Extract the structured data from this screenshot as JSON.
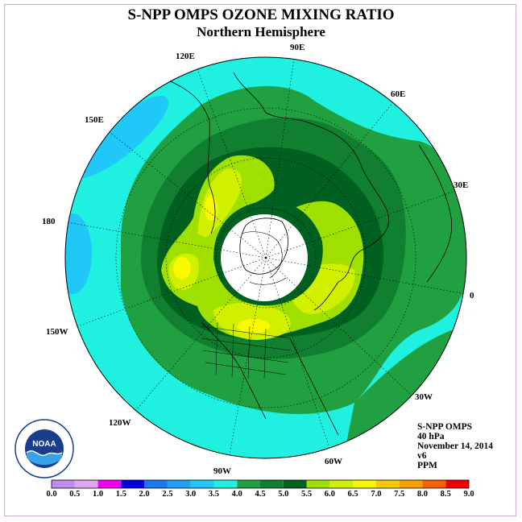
{
  "title": "S-NPP OMPS OZONE MIXING RATIO",
  "subtitle": "Northern Hemisphere",
  "longitude_labels": [
    "90E",
    "60E",
    "30E",
    "0",
    "30W",
    "60W",
    "90W",
    "120W",
    "150W",
    "180",
    "150E",
    "120E"
  ],
  "info": {
    "instrument": "S-NPP OMPS",
    "level": "40 hPa",
    "date": "November 14, 2014",
    "version": "v6",
    "units": "PPM"
  },
  "colorbar": {
    "ticks": [
      "0.0",
      "0.5",
      "1.0",
      "1.5",
      "2.0",
      "2.5",
      "3.0",
      "3.5",
      "4.0",
      "4.5",
      "5.0",
      "5.5",
      "6.0",
      "6.5",
      "7.0",
      "7.5",
      "8.0",
      "8.5",
      "9.0"
    ],
    "colors": [
      "#c08cf0",
      "#dba8f0",
      "#f000f0",
      "#0000e0",
      "#1a78f0",
      "#20a0f8",
      "#20c8f8",
      "#20f0e0",
      "#20a040",
      "#108030",
      "#006020",
      "#a0e000",
      "#d0f000",
      "#f8f800",
      "#f8c800",
      "#f8a000",
      "#f86000",
      "#f00000",
      "#a06040"
    ]
  },
  "logo_text": "NOAA"
}
